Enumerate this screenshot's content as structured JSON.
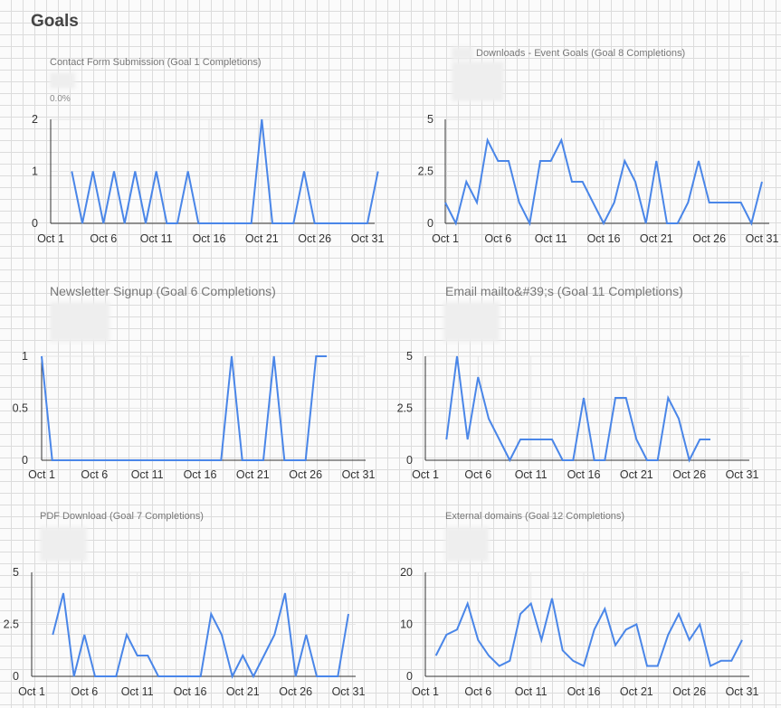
{
  "page": {
    "title": "Goals"
  },
  "colors": {
    "line": "#4a86e8",
    "grid": "#e6e6e6",
    "axis": "#333333"
  },
  "chart_data": [
    {
      "id": "contact",
      "type": "line",
      "title": "Contact Form Submission (Goal 1 Completions)",
      "kpi_change": "0.0%",
      "x_ticks": [
        "Oct 1",
        "Oct 6",
        "Oct 11",
        "Oct 16",
        "Oct 21",
        "Oct 26",
        "Oct 31"
      ],
      "y_ticks": [
        "2",
        "1",
        "0"
      ],
      "ylim": [
        0,
        2
      ],
      "series": [
        {
          "x_start": 3,
          "values": [
            1,
            0,
            1,
            0,
            1,
            0,
            1,
            0,
            1,
            0,
            0,
            1,
            0,
            0,
            0,
            0,
            0,
            0,
            2,
            0,
            0,
            0,
            1,
            0,
            0,
            0,
            0,
            0,
            0,
            1
          ]
        }
      ]
    },
    {
      "id": "downloads",
      "type": "line",
      "title": "Downloads - Event Goals (Goal 8 Completions)",
      "x_ticks": [
        "Oct 1",
        "Oct 6",
        "Oct 11",
        "Oct 16",
        "Oct 21",
        "Oct 26",
        "Oct 31"
      ],
      "y_ticks": [
        "5",
        "2.5",
        "0"
      ],
      "ylim": [
        0,
        5
      ],
      "series": [
        {
          "x_start": 1,
          "values": [
            1,
            0,
            2,
            1,
            4,
            3,
            3,
            1,
            0,
            3,
            3,
            4,
            2,
            2,
            1,
            0,
            1,
            3,
            2,
            0,
            3,
            0,
            0,
            1,
            3,
            1,
            1,
            1,
            1,
            0,
            2
          ]
        }
      ]
    },
    {
      "id": "newsletter",
      "type": "line",
      "title": "Newsletter Signup (Goal 6 Completions)",
      "x_ticks": [
        "Oct 1",
        "Oct 6",
        "Oct 11",
        "Oct 16",
        "Oct 21",
        "Oct 26",
        "Oct 31"
      ],
      "y_ticks": [
        "1",
        "0.5",
        "0"
      ],
      "ylim": [
        0,
        1
      ],
      "series": [
        {
          "x_start": 1,
          "values": [
            1,
            0,
            0,
            0,
            0,
            0,
            0,
            0,
            0,
            0,
            0,
            0,
            0,
            0,
            0,
            0,
            0,
            0,
            1,
            0,
            0,
            0,
            1,
            0,
            0,
            0,
            1,
            1
          ]
        }
      ]
    },
    {
      "id": "email",
      "type": "line",
      "title": "Email mailto&#39;s (Goal 11 Completions)",
      "x_ticks": [
        "Oct 1",
        "Oct 6",
        "Oct 11",
        "Oct 16",
        "Oct 21",
        "Oct 26",
        "Oct 31"
      ],
      "y_ticks": [
        "5",
        "2.5",
        "0"
      ],
      "ylim": [
        0,
        5
      ],
      "series": [
        {
          "x_start": 3,
          "values": [
            1,
            5,
            1,
            4,
            2,
            1,
            0,
            1,
            1,
            1,
            1,
            0,
            0,
            3,
            0,
            0,
            3,
            3,
            1,
            0,
            0,
            3,
            2,
            0,
            1,
            1
          ]
        }
      ]
    },
    {
      "id": "pdf",
      "type": "line",
      "title": "PDF Download (Goal 7 Completions)",
      "x_ticks": [
        "Oct 1",
        "Oct 6",
        "Oct 11",
        "Oct 16",
        "Oct 21",
        "Oct 26",
        "Oct 31"
      ],
      "y_ticks": [
        "5",
        "2.5",
        "0"
      ],
      "ylim": [
        0,
        5
      ],
      "series": [
        {
          "x_start": 3,
          "values": [
            2,
            4,
            0,
            2,
            0,
            0,
            0,
            2,
            1,
            1,
            0,
            0,
            0,
            0,
            0,
            3,
            2,
            0,
            1,
            0,
            1,
            2,
            4,
            0,
            2,
            0,
            0,
            0,
            3
          ]
        }
      ]
    },
    {
      "id": "external",
      "type": "line",
      "title": "External domains (Goal 12 Completions)",
      "x_ticks": [
        "Oct 1",
        "Oct 6",
        "Oct 11",
        "Oct 16",
        "Oct 21",
        "Oct 26",
        "Oct 31"
      ],
      "y_ticks": [
        "20",
        "10",
        "0"
      ],
      "ylim": [
        0,
        20
      ],
      "series": [
        {
          "x_start": 2,
          "values": [
            4,
            8,
            9,
            14,
            7,
            4,
            2,
            3,
            12,
            14,
            7,
            15,
            5,
            3,
            2,
            9,
            13,
            6,
            9,
            10,
            2,
            2,
            8,
            12,
            7,
            10,
            2,
            3,
            3,
            7
          ]
        }
      ]
    }
  ]
}
